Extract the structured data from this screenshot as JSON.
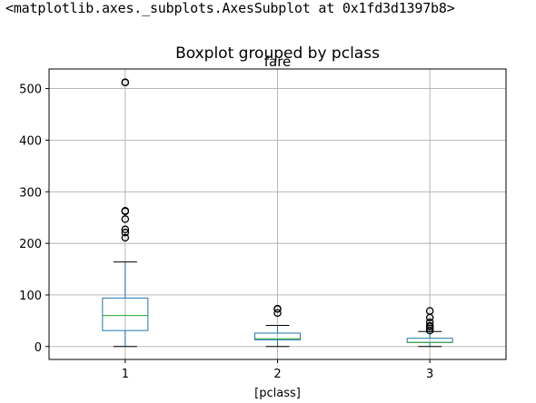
{
  "output_repr": "<matplotlib.axes._subplots.AxesSubplot at 0x1fd3d1397b8>",
  "chart_data": {
    "type": "box",
    "title": "Boxplot grouped by pclass",
    "subtitle": "fare",
    "xlabel": "[pclass]",
    "ylabel": "",
    "ylim": [
      -25,
      538
    ],
    "yticks": [
      0,
      100,
      200,
      300,
      400,
      500
    ],
    "grid": true,
    "categories": [
      "1",
      "2",
      "3"
    ],
    "boxes": [
      {
        "category": "1",
        "whisker_low": 0,
        "q1": 31,
        "median": 60,
        "q3": 94,
        "whisker_high": 164,
        "fliers": [
          211,
          221,
          227,
          247,
          262,
          263,
          512,
          512
        ]
      },
      {
        "category": "2",
        "whisker_low": 0,
        "q1": 13,
        "median": 15,
        "q3": 26,
        "whisker_high": 41,
        "fliers": [
          65,
          73,
          73
        ]
      },
      {
        "category": "3",
        "whisker_low": 0,
        "q1": 8,
        "median": 8,
        "q3": 16,
        "whisker_high": 29,
        "fliers": [
          31,
          35,
          39,
          40,
          47,
          56,
          69
        ]
      }
    ],
    "colors": {
      "box": "#1f77b4",
      "median": "#2ca02c",
      "whisker": "#000000",
      "grid": "#b0b0b0"
    }
  }
}
